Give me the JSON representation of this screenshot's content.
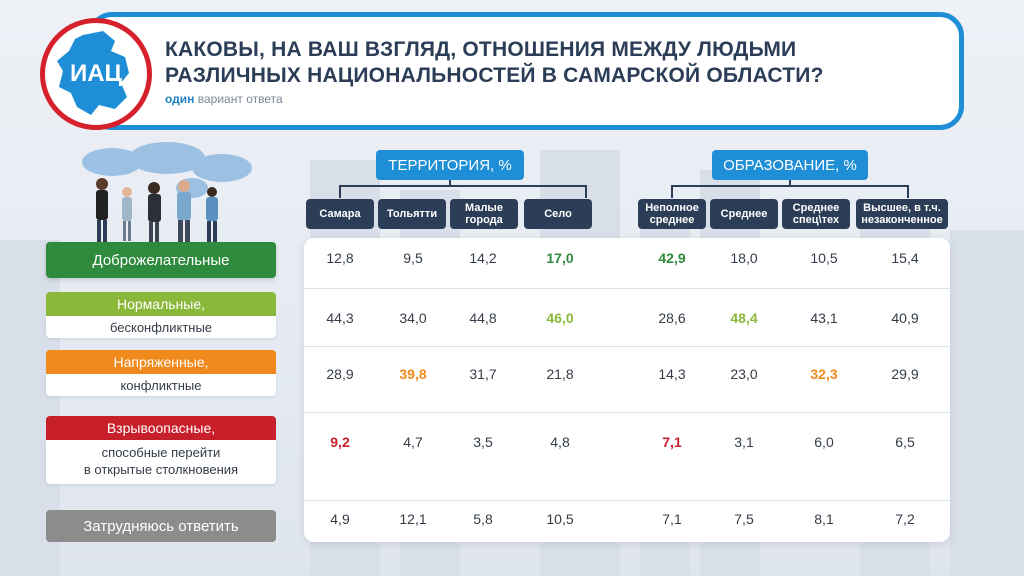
{
  "header": {
    "title_line1": "КАКОВЫ, НА ВАШ ВЗГЛЯД, ОТНОШЕНИЯ МЕЖДУ ЛЮДЬМИ",
    "title_line2": "РАЗЛИЧНЫХ НАЦИОНАЛЬНОСТЕЙ В САМАРСКОЙ ОБЛАСТИ?",
    "subtitle_bold": "один",
    "subtitle_rest": "вариант ответа",
    "logo_text": "ИАЦ"
  },
  "colors": {
    "accent_blue": "#1e8fd6",
    "dark_navy": "#2c3e57",
    "logo_red": "#d6202b",
    "green": "#2e8b3e",
    "light_green": "#8ab83a",
    "orange": "#f08a1c",
    "red": "#c8202a",
    "gray": "#8c8c8c"
  },
  "chart_data": {
    "type": "table",
    "title": "КАКОВЫ, НА ВАШ ВЗГЛЯД, ОТНОШЕНИЯ МЕЖДУ ЛЮДЬМИ РАЗЛИЧНЫХ НАЦИОНАЛЬНОСТЕЙ В САМАРСКОЙ ОБЛАСТИ?",
    "groups": [
      {
        "label": "ТЕРРИТОРИЯ, %",
        "columns": [
          "Самара",
          "Тольятти",
          "Малые города",
          "Село"
        ]
      },
      {
        "label": "ОБРАЗОВАНИЕ, %",
        "columns": [
          "Неполное среднее",
          "Среднее",
          "Среднее спец\\тех",
          "Высшее, в т.ч. незаконченное"
        ]
      }
    ],
    "columns": [
      "Самара",
      "Тольятти",
      "Малые города",
      "Село",
      "Неполное среднее",
      "Среднее",
      "Среднее спец\\тех",
      "Высшее, в т.ч. незаконченное"
    ],
    "rows": [
      {
        "label": "Доброжелательные",
        "sublabel": "",
        "color": "#2e8b3e",
        "values": [
          "12,8",
          "9,5",
          "14,2",
          "17,0",
          "42,9",
          "18,0",
          "10,5",
          "15,4"
        ],
        "highlight": [
          3,
          4
        ]
      },
      {
        "label": "Нормальные,",
        "sublabel": "бесконфликтные",
        "color": "#8ab83a",
        "values": [
          "44,3",
          "34,0",
          "44,8",
          "46,0",
          "28,6",
          "48,4",
          "43,1",
          "40,9"
        ],
        "highlight": [
          3,
          5
        ]
      },
      {
        "label": "Напряженные,",
        "sublabel": "конфликтные",
        "color": "#f08a1c",
        "values": [
          "28,9",
          "39,8",
          "31,7",
          "21,8",
          "14,3",
          "23,0",
          "32,3",
          "29,9"
        ],
        "highlight": [
          1,
          6
        ]
      },
      {
        "label": "Взрывоопасные,",
        "sublabel": "способные перейти в открытые столкновения",
        "color": "#c8202a",
        "values": [
          "9,2",
          "4,7",
          "3,5",
          "4,8",
          "7,1",
          "3,1",
          "6,0",
          "6,5"
        ],
        "highlight": [
          0,
          4
        ]
      },
      {
        "label": "Затрудняюсь ответить",
        "sublabel": "",
        "color": "#8c8c8c",
        "values": [
          "4,9",
          "12,1",
          "5,8",
          "10,5",
          "7,1",
          "7,5",
          "8,1",
          "7,2"
        ],
        "highlight": []
      }
    ]
  },
  "ui": {
    "group_territory": "ТЕРРИТОРИЯ, %",
    "group_education": "ОБРАЗОВАНИЕ, %",
    "col_headers": [
      [
        "Самара"
      ],
      [
        "Тольятти"
      ],
      [
        "Малые",
        "города"
      ],
      [
        "Село"
      ],
      [
        "Неполное",
        "среднее"
      ],
      [
        "Среднее"
      ],
      [
        "Среднее",
        "спец\\тех"
      ],
      [
        "Высшее, в т.ч.",
        "незаконченное"
      ]
    ],
    "row_sublabel_lines": [
      [],
      [
        "бесконфликтные"
      ],
      [
        "конфликтные"
      ],
      [
        "способные перейти",
        "в открытые столкновения"
      ],
      []
    ]
  }
}
